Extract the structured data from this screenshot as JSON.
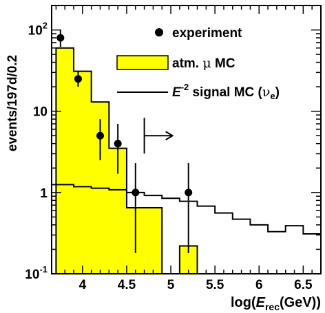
{
  "chart_data": {
    "type": "bar",
    "xlabel": "log(E_rec(GeV))",
    "xlabel_parts": {
      "pre": "log(",
      "var": "E",
      "sub": "rec",
      "post": "(GeV))"
    },
    "ylabel": "events/197d/0.2",
    "xlim": [
      3.65,
      6.7
    ],
    "ylim": [
      0.1,
      200
    ],
    "y_scale": "log",
    "x_ticks": [
      {
        "value": 4,
        "label": "4"
      },
      {
        "value": 4.5,
        "label": "4.5"
      },
      {
        "value": 5,
        "label": "5"
      },
      {
        "value": 5.5,
        "label": "5.5"
      },
      {
        "value": 6,
        "label": "6"
      },
      {
        "value": 6.5,
        "label": "6.5"
      }
    ],
    "y_ticks": [
      {
        "value": 0.1,
        "base": "10",
        "exp": "-1"
      },
      {
        "value": 1,
        "base": "1",
        "exp": ""
      },
      {
        "value": 10,
        "base": "10",
        "exp": ""
      },
      {
        "value": 100,
        "base": "10",
        "exp": "2"
      }
    ],
    "colors": {
      "mc_fill": "#ffff00",
      "line": "#000000",
      "frame": "#000000"
    },
    "legend": {
      "placement": "top-right",
      "experiment": "experiment",
      "mc_pre": "atm. ",
      "mc_mu": "μ",
      "mc_post": " MC",
      "signal_var": "E",
      "signal_exp": "-2",
      "signal_text": " signal MC (",
      "signal_nu": "ν",
      "signal_nu_sub": "e",
      "signal_close": ")"
    },
    "cut_marker": {
      "x": 4.7,
      "y": 5,
      "direction": "right"
    },
    "series": [
      {
        "name": "atm. μ MC",
        "kind": "histogram-filled",
        "bins": [
          {
            "x0": 3.7,
            "x1": 3.9,
            "y": 60
          },
          {
            "x0": 3.9,
            "x1": 4.1,
            "y": 31
          },
          {
            "x0": 4.1,
            "x1": 4.3,
            "y": 13
          },
          {
            "x0": 4.3,
            "x1": 4.5,
            "y": 3.5
          },
          {
            "x0": 4.5,
            "x1": 4.7,
            "y": 0.65
          },
          {
            "x0": 4.7,
            "x1": 4.9,
            "y": 0.65
          },
          {
            "x0": 5.1,
            "x1": 5.3,
            "y": 0.22
          }
        ]
      },
      {
        "name": "E^-2 signal MC (ν_e)",
        "kind": "histogram-line",
        "bins": [
          {
            "x0": 3.65,
            "x1": 3.9,
            "y": 1.25
          },
          {
            "x0": 3.9,
            "x1": 4.1,
            "y": 1.18
          },
          {
            "x0": 4.1,
            "x1": 4.3,
            "y": 1.13
          },
          {
            "x0": 4.3,
            "x1": 4.5,
            "y": 1.08
          },
          {
            "x0": 4.5,
            "x1": 4.7,
            "y": 1.0
          },
          {
            "x0": 4.7,
            "x1": 4.9,
            "y": 0.92
          },
          {
            "x0": 4.9,
            "x1": 5.1,
            "y": 0.85
          },
          {
            "x0": 5.1,
            "x1": 5.3,
            "y": 0.78
          },
          {
            "x0": 5.3,
            "x1": 5.5,
            "y": 0.68
          },
          {
            "x0": 5.5,
            "x1": 5.7,
            "y": 0.56
          },
          {
            "x0": 5.7,
            "x1": 5.9,
            "y": 0.47
          },
          {
            "x0": 5.9,
            "x1": 6.1,
            "y": 0.4
          },
          {
            "x0": 6.1,
            "x1": 6.3,
            "y": 0.33
          },
          {
            "x0": 6.3,
            "x1": 6.5,
            "y": 0.39
          },
          {
            "x0": 6.5,
            "x1": 6.7,
            "y": 0.31
          }
        ]
      },
      {
        "name": "experiment",
        "kind": "points",
        "points": [
          {
            "x": 3.75,
            "y": 80,
            "lo": 62,
            "hi": 100
          },
          {
            "x": 3.95,
            "y": 25,
            "lo": 20,
            "hi": 31
          },
          {
            "x": 4.2,
            "y": 5,
            "lo": 2.5,
            "hi": 8
          },
          {
            "x": 4.4,
            "y": 4,
            "lo": 1.7,
            "hi": 7
          },
          {
            "x": 4.6,
            "y": 1,
            "lo": 0.18,
            "hi": 2.3
          },
          {
            "x": 5.2,
            "y": 1,
            "lo": 0.18,
            "hi": 2.3
          }
        ]
      }
    ]
  }
}
